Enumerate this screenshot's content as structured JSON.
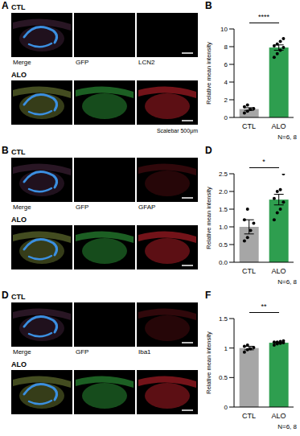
{
  "image_panels": [
    {
      "panel": "A",
      "rows": [
        "CTL",
        "ALO"
      ],
      "columns": [
        "Merge",
        "GFP",
        "LCN2"
      ],
      "scalebar": "Scalebar 500μm"
    },
    {
      "panel": "B",
      "rows": [
        "CTL",
        "ALO"
      ],
      "columns": [
        "Merge",
        "GFP",
        "GFAP"
      ]
    },
    {
      "panel": "D",
      "rows": [
        "CTL",
        "ALO"
      ],
      "columns": [
        "Merge",
        "GFP",
        "Iba1"
      ]
    }
  ],
  "chart_data": [
    {
      "panel": "B",
      "type": "bar",
      "categories": [
        "CTL",
        "ALO"
      ],
      "values": [
        0.95,
        7.9
      ],
      "errors": [
        0.15,
        0.3
      ],
      "points": [
        [
          0.5,
          0.7,
          0.9,
          1.0,
          1.2,
          1.4
        ],
        [
          6.8,
          7.2,
          7.6,
          7.9,
          8.1,
          8.3,
          8.6,
          8.9
        ]
      ],
      "colors": [
        "#a6a6a6",
        "#2e9e4f"
      ],
      "y_label": "Relative mean intensity",
      "ylim": [
        0,
        10
      ],
      "yticks": [
        0,
        2,
        4,
        6,
        8,
        10
      ],
      "significance": "****",
      "annotation": "N=6, 8"
    },
    {
      "panel": "D",
      "type": "bar",
      "categories": [
        "CTL",
        "ALO"
      ],
      "values": [
        1.0,
        1.77
      ],
      "errors": [
        0.2,
        0.15
      ],
      "points": [
        [
          0.6,
          0.7,
          0.9,
          1.1,
          1.2,
          1.5
        ],
        [
          1.2,
          1.4,
          1.5,
          1.7,
          1.8,
          2.0,
          2.05,
          2.5
        ]
      ],
      "colors": [
        "#a6a6a6",
        "#2e9e4f"
      ],
      "y_label": "Relative mean intensity",
      "ylim": [
        0,
        2.5
      ],
      "yticks": [
        {
          "value": 0,
          "label": "0.0"
        },
        0.5,
        {
          "value": 1,
          "label": "1.0"
        },
        1.5,
        {
          "value": 2,
          "label": "2.0"
        },
        2.5
      ],
      "significance": "*",
      "annotation": "N=6, 8"
    },
    {
      "panel": "F",
      "type": "bar",
      "categories": [
        "CTL",
        "ALO"
      ],
      "values": [
        1.0,
        1.09
      ],
      "errors": [
        0.03,
        0.01
      ],
      "points": [
        [
          0.93,
          0.97,
          0.99,
          1.01,
          1.03,
          1.05
        ],
        [
          1.05,
          1.07,
          1.08,
          1.09,
          1.1,
          1.1,
          1.11,
          1.12
        ]
      ],
      "colors": [
        "#a6a6a6",
        "#2e9e4f"
      ],
      "y_label": "Relative mean intensity",
      "ylim": [
        0,
        1.5
      ],
      "yticks": [
        0,
        0.5,
        1,
        1.5
      ],
      "significance": "**",
      "annotation": "N=6, 8"
    }
  ]
}
